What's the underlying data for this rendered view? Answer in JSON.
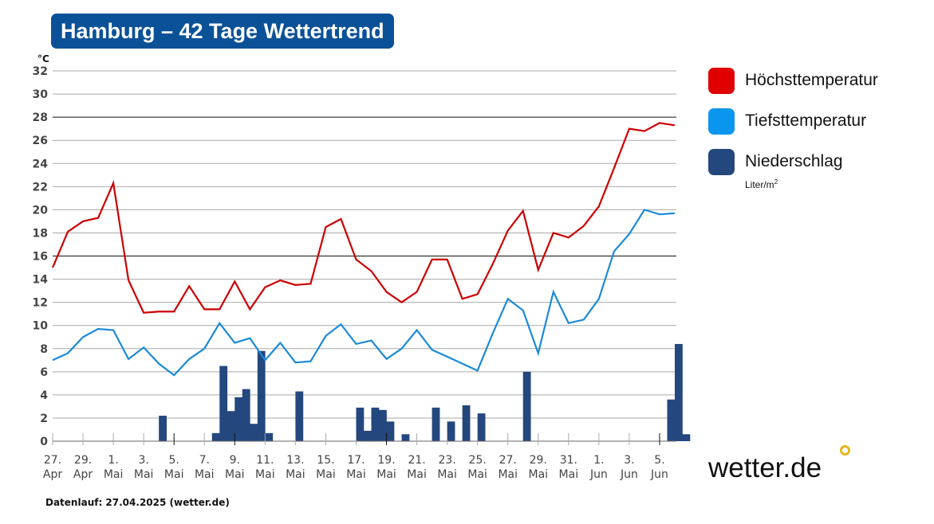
{
  "header": {
    "title": "Hamburg – 42 Tage Wettertrend"
  },
  "legend": {
    "items": [
      {
        "label": "Höchsttemperatur",
        "color": "#e00000"
      },
      {
        "label": "Tiefsttemperatur",
        "color": "#0a96ee"
      },
      {
        "label": "Niederschlag",
        "color": "#24477d"
      }
    ],
    "precip_unit": "Liter/m",
    "precip_unit_sup": "2"
  },
  "footer": {
    "text": "Datenlauf: 27.04.2025 (wetter.de)"
  },
  "logo": {
    "text": "wetter.de",
    "accent": "#e5b61b"
  },
  "chart_data": {
    "type": "line",
    "title": "Hamburg – 42 Tage Wettertrend",
    "ylabel": "°C",
    "ylim": [
      0,
      32
    ],
    "yticks": [
      0,
      2,
      4,
      6,
      8,
      10,
      12,
      14,
      16,
      18,
      20,
      22,
      24,
      26,
      28,
      30,
      32
    ],
    "grid": true,
    "legend_position": "right",
    "xtick_labels": [
      [
        "27.",
        "Apr"
      ],
      [
        "29.",
        "Apr"
      ],
      [
        "1.",
        "Mai"
      ],
      [
        "3.",
        "Mai"
      ],
      [
        "5.",
        "Mai"
      ],
      [
        "7.",
        "Mai"
      ],
      [
        "9.",
        "Mai"
      ],
      [
        "11.",
        "Mai"
      ],
      [
        "13.",
        "Mai"
      ],
      [
        "15.",
        "Mai"
      ],
      [
        "17.",
        "Mai"
      ],
      [
        "19.",
        "Mai"
      ],
      [
        "21.",
        "Mai"
      ],
      [
        "23.",
        "Mai"
      ],
      [
        "25.",
        "Mai"
      ],
      [
        "27.",
        "Mai"
      ],
      [
        "29.",
        "Mai"
      ],
      [
        "31.",
        "Mai"
      ],
      [
        "1.",
        "Jun"
      ],
      [
        "3.",
        "Jun"
      ],
      [
        "5.",
        "Jun"
      ]
    ],
    "series": [
      {
        "name": "Höchsttemperatur",
        "type": "line",
        "color": "#cc0000",
        "values": [
          15.0,
          18.1,
          19.0,
          19.3,
          22.3,
          13.9,
          11.1,
          11.2,
          11.2,
          13.4,
          11.4,
          11.4,
          13.8,
          11.4,
          13.3,
          13.9,
          13.5,
          13.6,
          18.5,
          19.2,
          15.7,
          14.7,
          12.9,
          12.0,
          12.9,
          15.7,
          15.7,
          12.3,
          12.7,
          15.3,
          18.2,
          19.9,
          14.8,
          18.0,
          17.6,
          18.6,
          20.3,
          23.6,
          27.0,
          26.8,
          27.5,
          27.3
        ]
      },
      {
        "name": "Tiefsttemperatur",
        "type": "line",
        "color": "#1a8ad8",
        "values": [
          7.0,
          7.6,
          9.0,
          9.7,
          9.6,
          7.1,
          8.1,
          6.7,
          5.7,
          7.1,
          8.0,
          10.2,
          8.5,
          8.9,
          7.0,
          8.5,
          6.8,
          6.9,
          9.1,
          10.1,
          8.4,
          8.7,
          7.1,
          8.0,
          9.6,
          7.9,
          7.3,
          6.7,
          6.1,
          9.3,
          12.3,
          11.3,
          7.6,
          12.9,
          10.2,
          10.5,
          12.3,
          16.4,
          17.9,
          20.0,
          19.6,
          19.7
        ]
      },
      {
        "name": "Niederschlag",
        "type": "bar",
        "unit": "Liter/m²",
        "color": "#24477d",
        "values": [
          0,
          0,
          0,
          0,
          0,
          0,
          0,
          0,
          0,
          0,
          0,
          0,
          0,
          0,
          2.2,
          0,
          0,
          0,
          0,
          0,
          0,
          0.7,
          6.5,
          2.6,
          3.8,
          4.5,
          1.5,
          7.8,
          0.7,
          0,
          0,
          0,
          4.3,
          0,
          0,
          0,
          0,
          0,
          0,
          0,
          2.9,
          0.9,
          2.9,
          2.7,
          1.7,
          0,
          0.6,
          0,
          0,
          0,
          2.9,
          0,
          1.7,
          0,
          3.1,
          0,
          2.4,
          0,
          0,
          0,
          0,
          0,
          6.0,
          0,
          0,
          0,
          0,
          0,
          0,
          0,
          0,
          0,
          0,
          0,
          0,
          0,
          0,
          0,
          0,
          0,
          0,
          3.6,
          8.4,
          0.6
        ]
      }
    ]
  }
}
